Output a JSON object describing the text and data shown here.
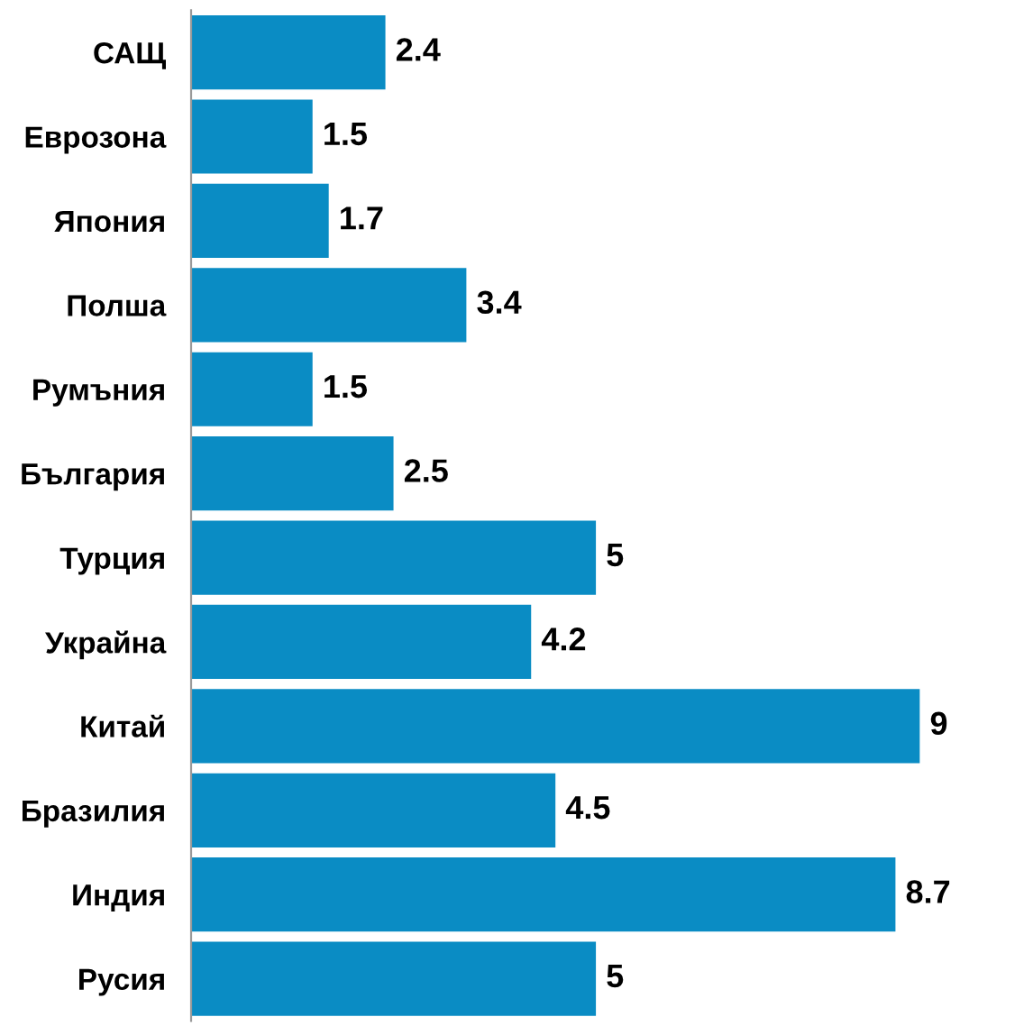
{
  "chart_data": {
    "type": "bar",
    "orientation": "horizontal",
    "categories": [
      "САЩ",
      "Еврозона",
      "Япония",
      "Полша",
      "Румъния",
      "България",
      "Турция",
      "Украйна",
      "Китай",
      "Бразилия",
      "Индия",
      "Русия"
    ],
    "values": [
      2.4,
      1.5,
      1.7,
      3.4,
      1.5,
      2.5,
      5,
      4.2,
      9,
      4.5,
      8.7,
      5
    ],
    "color": "#0a8cc4",
    "data_labels": true,
    "tick_labels": "y",
    "grid": false,
    "legend": false
  }
}
